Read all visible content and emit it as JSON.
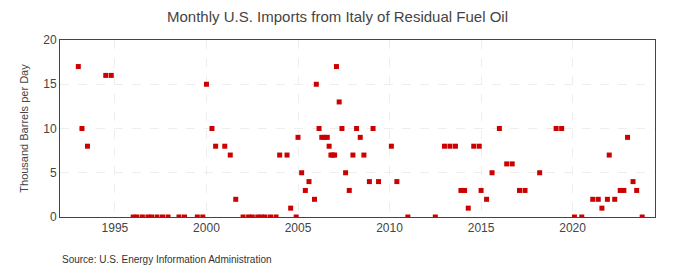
{
  "chart_data": {
    "type": "scatter",
    "title": "Monthly U.S. Imports from Italy of Residual Fuel Oil",
    "ylabel": "Thousand Barrels per Day",
    "annotations": [
      "Source: U.S. Energy Information Administration"
    ],
    "color": "#cc0000",
    "marker": "square",
    "grid": true,
    "xlim": [
      1992.0,
      2024.5
    ],
    "ylim": [
      0,
      20
    ],
    "xticks": [
      1995,
      2000,
      2005,
      2010,
      2015,
      2020
    ],
    "yticks": [
      0,
      5,
      10,
      15,
      20
    ],
    "x": [
      1993.0,
      1993.2,
      1993.5,
      1994.5,
      1994.8,
      1996.0,
      1996.2,
      1996.5,
      1996.8,
      1997.0,
      1997.3,
      1997.6,
      1997.9,
      1998.5,
      1998.8,
      1999.5,
      1999.8,
      2000.0,
      2000.3,
      2000.5,
      2001.0,
      2001.3,
      2001.6,
      2002.0,
      2002.3,
      2002.5,
      2002.8,
      2003.0,
      2003.2,
      2003.5,
      2003.8,
      2004.0,
      2004.4,
      2004.6,
      2004.9,
      2005.0,
      2005.2,
      2005.4,
      2005.6,
      2005.9,
      2006.0,
      2006.15,
      2006.3,
      2006.45,
      2006.6,
      2006.7,
      2006.8,
      2006.9,
      2007.0,
      2007.1,
      2007.25,
      2007.4,
      2007.6,
      2007.8,
      2008.0,
      2008.2,
      2008.4,
      2008.6,
      2008.9,
      2009.1,
      2009.4,
      2010.1,
      2010.4,
      2011.0,
      2012.5,
      2013.0,
      2013.3,
      2013.6,
      2013.9,
      2014.1,
      2014.3,
      2014.6,
      2014.9,
      2015.0,
      2015.3,
      2015.6,
      2016.0,
      2016.4,
      2016.7,
      2017.1,
      2017.4,
      2018.2,
      2019.1,
      2019.4,
      2020.1,
      2020.5,
      2021.1,
      2021.4,
      2021.6,
      2021.9,
      2022.0,
      2022.3,
      2022.6,
      2022.8,
      2023.0,
      2023.3,
      2023.5,
      2023.8
    ],
    "values": [
      17,
      10,
      8,
      16,
      16,
      0,
      0,
      0,
      0,
      0,
      0,
      0,
      0,
      0,
      0,
      0,
      0,
      15,
      10,
      8,
      8,
      7,
      2,
      0,
      0,
      0,
      0,
      0,
      0,
      0,
      0,
      7,
      7,
      1,
      0,
      9,
      5,
      3,
      4,
      2,
      15,
      10,
      9,
      9,
      9,
      8,
      7,
      7,
      7,
      17,
      13,
      10,
      5,
      3,
      7,
      10,
      9,
      7,
      4,
      10,
      4,
      8,
      4,
      0,
      0,
      8,
      8,
      8,
      3,
      3,
      1,
      8,
      8,
      3,
      2,
      5,
      10,
      6,
      6,
      3,
      3,
      5,
      10,
      10,
      0,
      0,
      2,
      2,
      1,
      2,
      7,
      2,
      3,
      3,
      9,
      4,
      3,
      0
    ]
  }
}
